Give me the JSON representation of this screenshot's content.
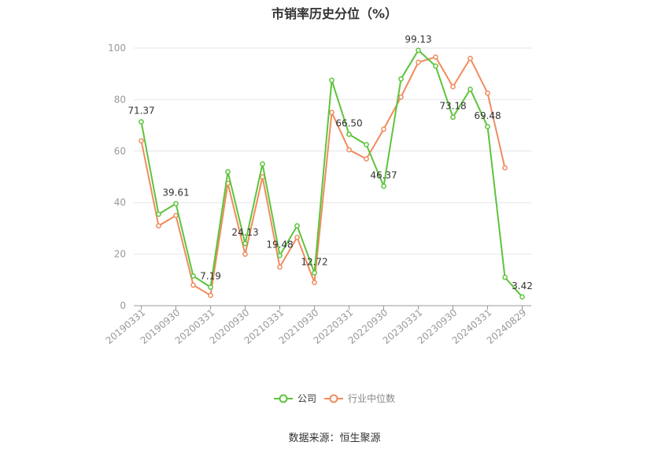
{
  "chart_data": {
    "type": "line",
    "title": "市销率历史分位（%）",
    "xlabel": "",
    "ylabel": "",
    "ylim": [
      0,
      100
    ],
    "yticks": [
      0,
      20,
      40,
      60,
      80,
      100
    ],
    "x": [
      "20190331",
      "20190630",
      "20190930",
      "20191231",
      "20200331",
      "20200630",
      "20200930",
      "20201231",
      "20210331",
      "20210630",
      "20210930",
      "20211231",
      "20220331",
      "20220630",
      "20220930",
      "20221231",
      "20230331",
      "20230630",
      "20230930",
      "20231231",
      "20240331",
      "20240630",
      "20240829"
    ],
    "x_tick_labels": [
      "20190331",
      "20190930",
      "20200331",
      "20200930",
      "20210331",
      "20210930",
      "20220331",
      "20220930",
      "20230331",
      "20230930",
      "20240331",
      "20240829"
    ],
    "series": [
      {
        "name": "公司",
        "color": "#5cc43b",
        "values": [
          71.37,
          35.5,
          39.61,
          11.5,
          7.19,
          52.0,
          24.13,
          55.0,
          19.48,
          31.0,
          12.72,
          87.5,
          66.5,
          62.5,
          46.37,
          88.0,
          99.13,
          93.0,
          73.18,
          84.0,
          69.48,
          11.0,
          3.42
        ]
      },
      {
        "name": "行业中位数",
        "color": "#f08b5e",
        "values": [
          64.0,
          31.0,
          35.0,
          8.0,
          4.0,
          47.5,
          20.0,
          50.0,
          15.0,
          26.5,
          9.0,
          75.0,
          60.5,
          57.0,
          68.5,
          81.0,
          94.5,
          96.5,
          85.0,
          96.0,
          82.5,
          53.5,
          null
        ]
      }
    ],
    "data_labels": [
      {
        "index": 0,
        "text": "71.37"
      },
      {
        "index": 2,
        "text": "39.61"
      },
      {
        "index": 4,
        "text": "7.19"
      },
      {
        "index": 6,
        "text": "24.13"
      },
      {
        "index": 8,
        "text": "19.48"
      },
      {
        "index": 10,
        "text": "12.72"
      },
      {
        "index": 12,
        "text": "66.50"
      },
      {
        "index": 14,
        "text": "46.37"
      },
      {
        "index": 16,
        "text": "99.13"
      },
      {
        "index": 18,
        "text": "73.18"
      },
      {
        "index": 20,
        "text": "69.48"
      },
      {
        "index": 22,
        "text": "3.42"
      }
    ],
    "grid": true,
    "legend_position": "bottom-center"
  },
  "footer": {
    "source": "数据来源：恒生聚源"
  }
}
